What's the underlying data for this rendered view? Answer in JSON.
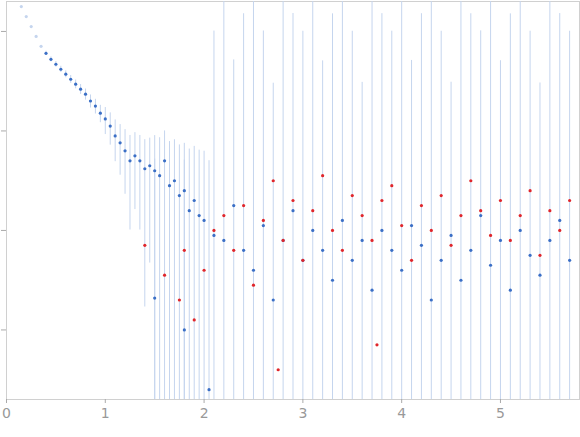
{
  "chart_data": {
    "type": "scatter",
    "log": "y",
    "tick_labels": "x",
    "xlim": [
      0,
      5.8
    ],
    "xticks": [
      0,
      1,
      2,
      3,
      4,
      5
    ],
    "ylim": [
      0.0002,
      2
    ],
    "yticks": [
      0.001,
      0.01,
      0.1,
      1
    ],
    "series": [
      {
        "color": "#c5d5ee",
        "marker": "circle",
        "x": [
          0.15,
          0.2,
          0.25,
          0.3,
          0.35
        ],
        "values": [
          1.78,
          1.41,
          1.12,
          0.891,
          0.708
        ]
      },
      {
        "color": "#3b6fc6",
        "marker": "circle",
        "x": [
          0.4,
          0.45,
          0.5,
          0.55,
          0.6,
          0.65,
          0.7,
          0.75,
          0.8,
          0.85,
          0.9,
          0.95,
          1.0,
          1.05,
          1.1,
          1.15,
          1.2,
          1.25,
          1.3,
          1.35,
          1.4,
          1.45,
          1.5,
          1.5,
          1.55,
          1.6,
          1.65,
          1.7,
          1.75,
          1.8,
          1.8,
          1.85,
          1.9,
          1.95,
          2.0,
          2.05,
          2.1,
          2.2,
          2.3,
          2.4,
          2.5,
          2.6,
          2.7,
          2.8,
          2.9,
          3.0,
          3.1,
          3.2,
          3.3,
          3.4,
          3.5,
          3.6,
          3.7,
          3.8,
          3.9,
          4.0,
          4.1,
          4.2,
          4.3,
          4.4,
          4.5,
          4.6,
          4.7,
          4.8,
          4.9,
          5.0,
          5.1,
          5.2,
          5.3,
          5.4,
          5.5,
          5.6,
          5.7
        ],
        "values": [
          0.603,
          0.525,
          0.468,
          0.417,
          0.372,
          0.331,
          0.295,
          0.263,
          0.234,
          0.2,
          0.178,
          0.151,
          0.132,
          0.112,
          0.0891,
          0.0759,
          0.0631,
          0.0501,
          0.0562,
          0.0501,
          0.0417,
          0.0447,
          0.0398,
          0.00209,
          0.0355,
          0.0501,
          0.0282,
          0.0316,
          0.0224,
          0.0251,
          0.001,
          0.0158,
          0.02,
          0.0141,
          0.0126,
          0.000251,
          0.00891,
          0.00794,
          0.0178,
          0.00631,
          0.00398,
          0.0112,
          0.002,
          0.00794,
          0.0158,
          0.00501,
          0.01,
          0.00631,
          0.00316,
          0.0126,
          0.00501,
          0.00794,
          0.00251,
          0.01,
          0.00631,
          0.00398,
          0.0112,
          0.00708,
          0.002,
          0.00501,
          0.00891,
          0.00316,
          0.00631,
          0.0141,
          0.00447,
          0.00794,
          0.00251,
          0.01,
          0.00562,
          0.00355,
          0.00794,
          0.0126,
          0.00501
        ],
        "errors": [
          0.03,
          0.03,
          0.03,
          0.03,
          0.03,
          0.03,
          0.03,
          0.03,
          0.03,
          0.03,
          0.03,
          0.03,
          0.04,
          0.04,
          0.04,
          0.04,
          0.04,
          0.04,
          0.04,
          0.04,
          0.04,
          0.04,
          0.05,
          0.05,
          0.05,
          0.05,
          0.05,
          0.05,
          0.05,
          0.05,
          0.05,
          0.05,
          0.05,
          0.05,
          0.05,
          0.05,
          1,
          2,
          0.5,
          1.5,
          2,
          1,
          0.3,
          2,
          1.5,
          1,
          2,
          0.5,
          1.5,
          2,
          1,
          0.3,
          2,
          1.5,
          1,
          2,
          0.5,
          1.5,
          2,
          1,
          0.3,
          2,
          1.5,
          1,
          2,
          0.5,
          1.5,
          2,
          1,
          0.3,
          2,
          1.5,
          1
        ]
      },
      {
        "color": "#e0262b",
        "marker": "circle",
        "x": [
          1.4,
          1.6,
          1.75,
          1.8,
          1.9,
          2.0,
          2.1,
          2.2,
          2.3,
          2.4,
          2.5,
          2.6,
          2.7,
          2.75,
          2.8,
          2.9,
          3.0,
          3.1,
          3.2,
          3.3,
          3.4,
          3.5,
          3.6,
          3.7,
          3.75,
          3.8,
          3.9,
          4.0,
          4.1,
          4.2,
          4.3,
          4.4,
          4.5,
          4.6,
          4.7,
          4.8,
          4.9,
          5.0,
          5.1,
          5.2,
          5.3,
          5.4,
          5.5,
          5.6,
          5.7
        ],
        "values": [
          0.00708,
          0.00355,
          0.002,
          0.00631,
          0.00126,
          0.00398,
          0.01,
          0.0141,
          0.00631,
          0.0178,
          0.00282,
          0.0126,
          0.0316,
          0.000398,
          0.00794,
          0.02,
          0.00501,
          0.0158,
          0.0355,
          0.01,
          0.00631,
          0.0224,
          0.0141,
          0.00794,
          0.000708,
          0.02,
          0.0282,
          0.0112,
          0.00501,
          0.0178,
          0.01,
          0.0224,
          0.00708,
          0.0141,
          0.0316,
          0.0158,
          0.00891,
          0.02,
          0.00794,
          0.0141,
          0.0251,
          0.00562,
          0.0158,
          0.01,
          0.02
        ]
      }
    ]
  }
}
